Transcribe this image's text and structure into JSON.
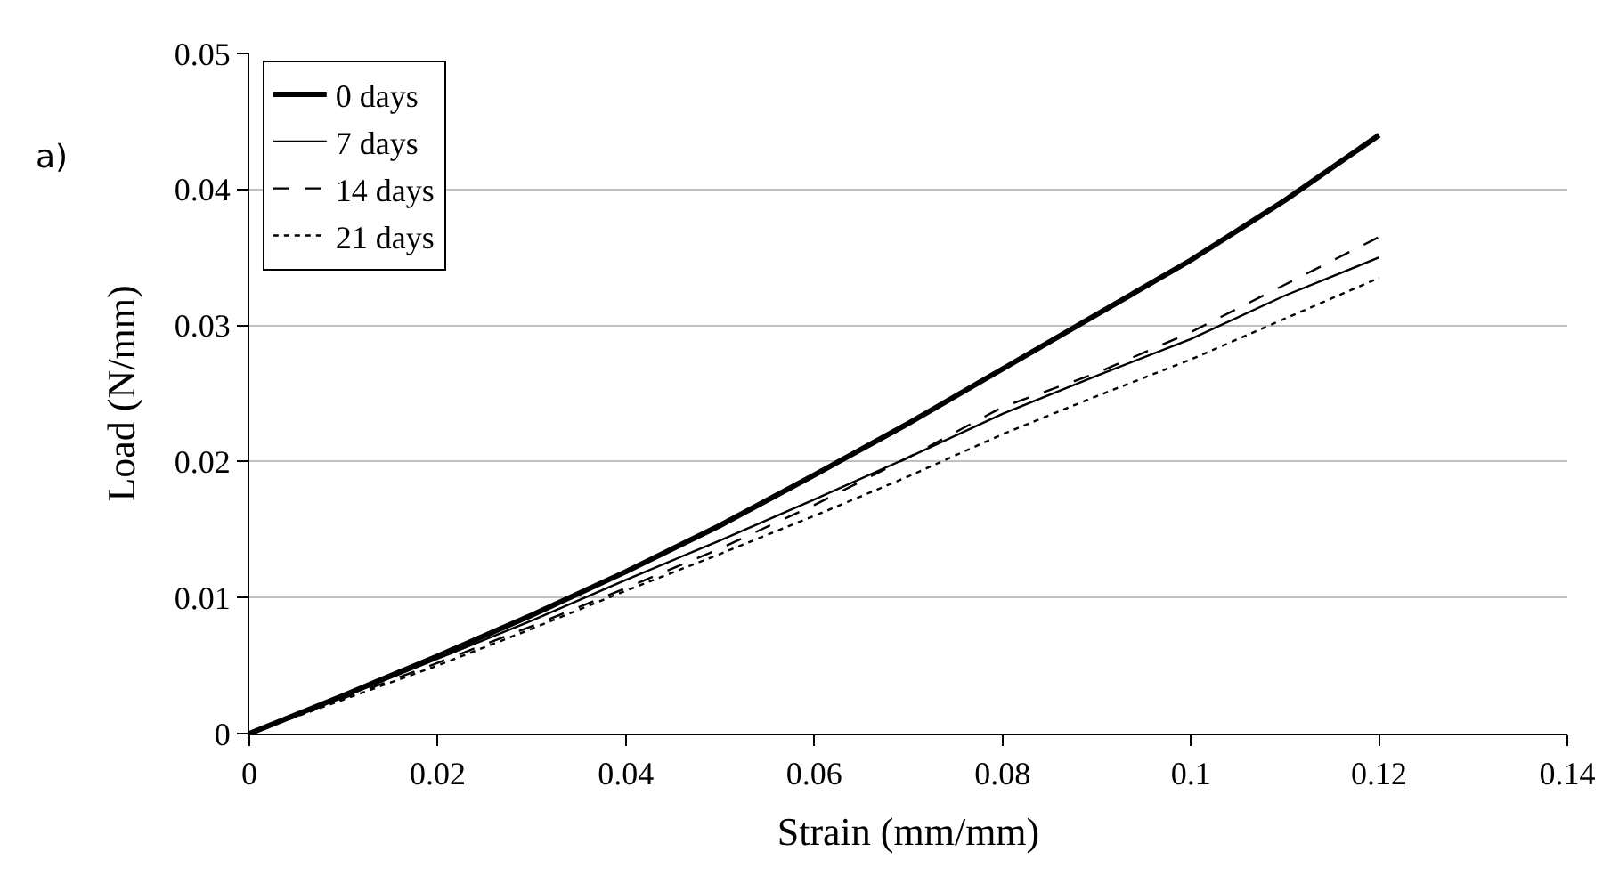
{
  "chart_data": {
    "type": "line",
    "xlabel": "Strain (mm/mm)",
    "ylabel": "Load (N/mm)",
    "annotations": [
      "a)"
    ],
    "xlim": [
      0,
      0.14
    ],
    "xticks": [
      0,
      0.02,
      0.04,
      0.06,
      0.08,
      0.1,
      0.12,
      0.14
    ],
    "ylim": [
      0,
      0.05
    ],
    "yticks": [
      0,
      0.01,
      0.02,
      0.03,
      0.04,
      0.05
    ],
    "grid": "y",
    "legend": "top left",
    "marker": "none",
    "x": [
      0,
      0.01,
      0.02,
      0.03,
      0.04,
      0.05,
      0.06,
      0.07,
      0.08,
      0.09,
      0.1,
      0.11,
      0.12
    ],
    "series": [
      {
        "name": "0 days",
        "color": "#000000",
        "line_style": "solid",
        "values": [
          0,
          0.0028,
          0.0057,
          0.0087,
          0.0119,
          0.0153,
          0.019,
          0.0228,
          0.0268,
          0.0308,
          0.0348,
          0.0392,
          0.044
        ]
      },
      {
        "name": "7 days",
        "color": "#000000",
        "line_style": "solid",
        "values": [
          0,
          0.0027,
          0.0055,
          0.0083,
          0.0113,
          0.0142,
          0.0172,
          0.0203,
          0.0235,
          0.0263,
          0.029,
          0.0322,
          0.035
        ]
      },
      {
        "name": "14 days",
        "color": "#000000",
        "line_style": "dashed",
        "values": [
          0,
          0.0026,
          0.0052,
          0.0079,
          0.0107,
          0.0136,
          0.0168,
          0.0203,
          0.024,
          0.0265,
          0.0295,
          0.033,
          0.0365
        ]
      },
      {
        "name": "21 days",
        "color": "#000000",
        "line_style": "dotted",
        "values": [
          0,
          0.0025,
          0.005,
          0.0077,
          0.0105,
          0.0132,
          0.016,
          0.0189,
          0.022,
          0.0248,
          0.0275,
          0.0305,
          0.0335
        ]
      }
    ]
  }
}
